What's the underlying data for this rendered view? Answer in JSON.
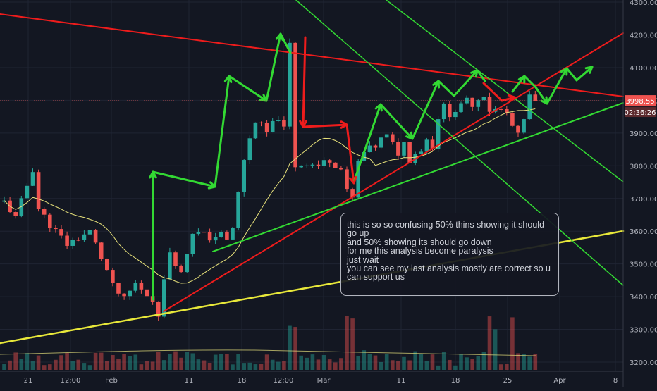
{
  "chart_data": {
    "type": "candlestick",
    "price_axis": {
      "min": 3200,
      "max": 4300,
      "ticks": [
        "3200.00",
        "3300.00",
        "3400.00",
        "3500.00",
        "3600.00",
        "3700.00",
        "3800.00",
        "3900.00",
        "4000.00",
        "4100.00",
        "4200.00",
        "4300.00"
      ]
    },
    "time_axis": {
      "labels": [
        "21",
        "12:00",
        "Feb",
        "11",
        "18",
        "12:00",
        "Mar",
        "11",
        "18",
        "25",
        "Apr",
        "8"
      ]
    },
    "last_price": "3998.55",
    "countdown": "02:36:26",
    "colors": {
      "background": "#131722",
      "up": "#26a69a",
      "down": "#ef5350",
      "ma": "#e6e07a",
      "green_lines": "#33d933",
      "red_lines": "#ee1c1c",
      "yellow_line": "#e8e83a",
      "price_label": "#ef5350"
    },
    "price_path": [
      [
        0,
        3690
      ],
      [
        2,
        3640
      ],
      [
        5,
        3790
      ],
      [
        6,
        3670
      ],
      [
        8,
        3620
      ],
      [
        11,
        3560
      ],
      [
        15,
        3600
      ],
      [
        18,
        3480
      ],
      [
        19,
        3430
      ],
      [
        21,
        3390
      ],
      [
        23,
        3440
      ],
      [
        24,
        3420
      ],
      [
        26,
        3390
      ],
      [
        27,
        3350
      ],
      [
        29,
        3540
      ],
      [
        31,
        3470
      ],
      [
        33,
        3600
      ],
      [
        36,
        3580
      ],
      [
        38,
        3590
      ],
      [
        39,
        3570
      ],
      [
        40,
        3610
      ],
      [
        42,
        3820
      ],
      [
        43,
        3880
      ],
      [
        44,
        3940
      ],
      [
        46,
        3900
      ],
      [
        48,
        3950
      ],
      [
        49,
        3910
      ],
      [
        50,
        4170
      ],
      [
        51,
        3800
      ],
      [
        53,
        3810
      ],
      [
        55,
        3800
      ],
      [
        57,
        3820
      ],
      [
        59,
        3790
      ],
      [
        60,
        3720
      ],
      [
        61,
        3700
      ],
      [
        62,
        3810
      ],
      [
        63,
        3840
      ],
      [
        65,
        3860
      ],
      [
        66,
        3880
      ],
      [
        67,
        3890
      ],
      [
        69,
        3840
      ],
      [
        70,
        3870
      ],
      [
        71,
        3820
      ],
      [
        72,
        3840
      ],
      [
        73,
        3850
      ],
      [
        74,
        3880
      ],
      [
        75,
        3860
      ],
      [
        76,
        3950
      ],
      [
        77,
        3980
      ],
      [
        78,
        3960
      ],
      [
        80,
        3980
      ],
      [
        81,
        4000
      ],
      [
        82,
        3990
      ],
      [
        84,
        4020
      ],
      [
        85,
        3970
      ],
      [
        87,
        3970
      ],
      [
        88,
        3960
      ],
      [
        89,
        3920
      ],
      [
        90,
        3890
      ],
      [
        91,
        3940
      ],
      [
        92,
        4010
      ],
      [
        93,
        3998.55
      ]
    ],
    "annotation": [
      "this is so so confusing 50%  thins showing it should go up",
      "and 50% showing its should go down",
      "for me this analysis become paralysis",
      "just wait",
      "you can see my last analysis mostly are correct so u can support us"
    ]
  }
}
